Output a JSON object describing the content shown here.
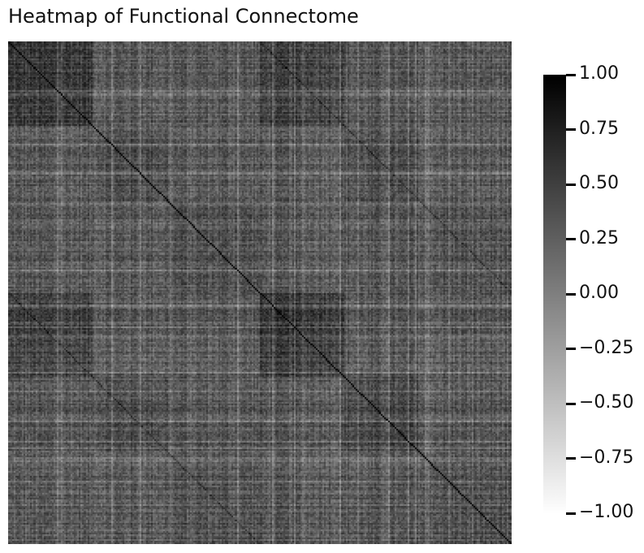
{
  "chart_data": {
    "type": "heatmap",
    "title": "Heatmap of Functional Connectome",
    "xlabel": "",
    "ylabel": "",
    "colormap": "gray_r",
    "value_range": [
      -1.0,
      1.0
    ],
    "diagonal_value": 1.0,
    "typical_offdiagonal_range": [
      -0.25,
      0.75
    ],
    "grid": false,
    "x_tick_labels_visible": false,
    "y_tick_labels_visible": false,
    "colorbar": {
      "placement": "right",
      "ticks": [
        {
          "value": 1.0,
          "label": "1.00"
        },
        {
          "value": 0.75,
          "label": "0.75"
        },
        {
          "value": 0.5,
          "label": "0.50"
        },
        {
          "value": 0.25,
          "label": "0.25"
        },
        {
          "value": 0.0,
          "label": "0.00"
        },
        {
          "value": -0.25,
          "label": "−0.25"
        },
        {
          "value": -0.5,
          "label": "−0.50"
        },
        {
          "value": -0.75,
          "label": "−0.75"
        },
        {
          "value": -1.0,
          "label": "−1.00"
        }
      ],
      "colors": {
        "high": "#000000",
        "low": "#ffffff"
      }
    }
  }
}
